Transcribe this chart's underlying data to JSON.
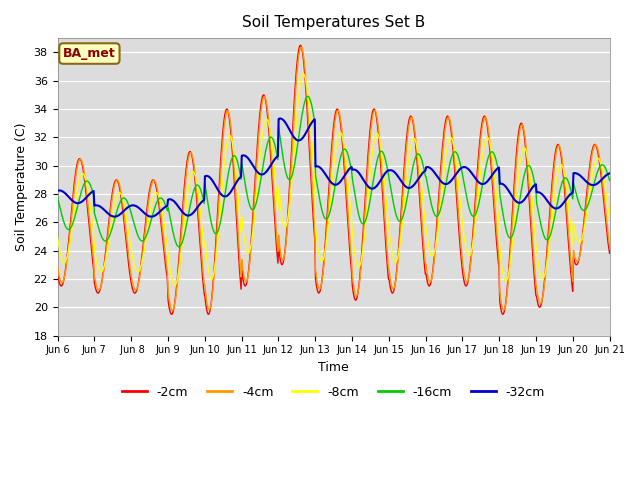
{
  "title": "Soil Temperatures Set B",
  "xlabel": "Time",
  "ylabel": "Soil Temperature (C)",
  "ylim": [
    18,
    39
  ],
  "yticks": [
    18,
    20,
    22,
    24,
    26,
    28,
    30,
    32,
    34,
    36,
    38
  ],
  "annotation": "BA_met",
  "plot_bg": "#dcdcdc",
  "grid_color": "white",
  "series": {
    "-2cm": {
      "color": "#ff0000",
      "lw": 1.0
    },
    "-4cm": {
      "color": "#ff9900",
      "lw": 1.0
    },
    "-8cm": {
      "color": "#ffff00",
      "lw": 1.0
    },
    "-16cm": {
      "color": "#00cc00",
      "lw": 1.0
    },
    "-32cm": {
      "color": "#0000cc",
      "lw": 1.5
    }
  },
  "n_points": 720,
  "peaks_2": [
    30.5,
    29.0,
    29.0,
    31.0,
    34.0,
    35.0,
    38.5,
    34.0,
    34.0,
    33.5,
    33.5,
    33.5,
    33.0,
    31.5,
    31.5
  ],
  "trough_2": [
    21.5,
    21.0,
    21.0,
    19.5,
    19.5,
    21.5,
    23.0,
    21.0,
    20.5,
    21.0,
    21.5,
    21.5,
    19.5,
    20.0,
    23.0
  ],
  "xtick_positions": [
    6,
    7,
    8,
    9,
    10,
    11,
    12,
    13,
    14,
    15,
    16,
    17,
    18,
    19,
    20,
    21
  ],
  "xtick_labels": [
    "Jun 6",
    "Jun 7",
    " Jun 8",
    "Jun 9",
    "Jun 10",
    "Jun 11",
    "Jun 12",
    "Jun 13",
    "Jun 14",
    "Jun 15",
    "Jun 16",
    "Jun 17",
    "Jun 18",
    "Jun 19",
    "Jun 20",
    "Jun 21"
  ]
}
